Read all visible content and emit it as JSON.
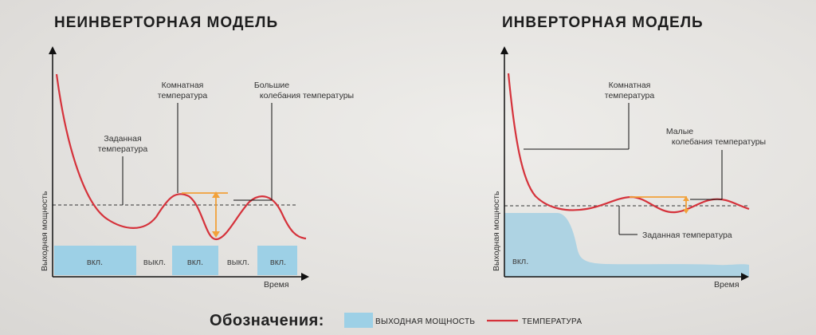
{
  "colors": {
    "power": "#9dd0e6",
    "power_area": "#aed3e3",
    "temperature": "#d5323b",
    "delta": "#f2a13a",
    "axis": "#111111"
  },
  "legend": {
    "title": "Обозначения:",
    "power_label": "ВЫХОДНАЯ МОЩНОСТЬ",
    "temperature_label": "ТЕМПЕРАТУРА"
  },
  "chart_data": [
    {
      "type": "line",
      "title": "НЕИНВЕРТОРНАЯ МОДЕЛЬ",
      "xlabel": "Время",
      "ylabel": "Выходная мощность",
      "series": [
        {
          "kind": "temperature",
          "values": [
            [
              0,
              10
            ],
            [
              0.3,
              8.5
            ],
            [
              0.7,
              7.3
            ],
            [
              1.2,
              6.3
            ],
            [
              1.8,
              5.6
            ],
            [
              2.5,
              5.2
            ],
            [
              3.2,
              5.7
            ],
            [
              3.8,
              6.5
            ],
            [
              4.2,
              6.5
            ],
            [
              4.6,
              5.3
            ],
            [
              5.0,
              4.6
            ],
            [
              5.4,
              5.1
            ],
            [
              5.8,
              6.3
            ],
            [
              6.2,
              6.2
            ],
            [
              6.6,
              4.9
            ],
            [
              6.9,
              4.6
            ]
          ]
        },
        {
          "kind": "power",
          "name": "",
          "blocks": [
            {
              "from": 0,
              "to": 1.9,
              "state": "вкл."
            },
            {
              "from": 1.9,
              "to": 2.75,
              "state": "выкл."
            },
            {
              "from": 2.75,
              "to": 3.8,
              "state": "вкл."
            },
            {
              "from": 3.8,
              "to": 4.6,
              "state": "выкл."
            },
            {
              "from": 4.6,
              "to": 5.5,
              "state": "вкл."
            }
          ]
        }
      ],
      "annotations": [
        {
          "text": "Заданная температура",
          "lines": [
            "Заданная",
            "температура"
          ]
        },
        {
          "text": "Комнатная температура",
          "lines": [
            "Комнатная",
            "температура"
          ]
        },
        {
          "text": "Большие колебания температуры",
          "lines": [
            "Большие",
            "колебания температуры"
          ]
        }
      ]
    },
    {
      "type": "line",
      "title": "ИНВЕРТОРНАЯ МОДЕЛЬ",
      "xlabel": "Время",
      "ylabel": "Выходная мощность",
      "series": [
        {
          "kind": "temperature"
        },
        {
          "kind": "power",
          "name": "",
          "label": "вкл."
        }
      ],
      "annotations": [
        {
          "text": "Комнатная температура",
          "lines": [
            "Комнатная",
            "температура"
          ]
        },
        {
          "text": "Малые колебания температуры",
          "lines": [
            "Малые",
            "колебания температуры"
          ]
        },
        {
          "text": "Заданная температура",
          "lines": [
            "Заданная температура"
          ]
        }
      ]
    }
  ]
}
